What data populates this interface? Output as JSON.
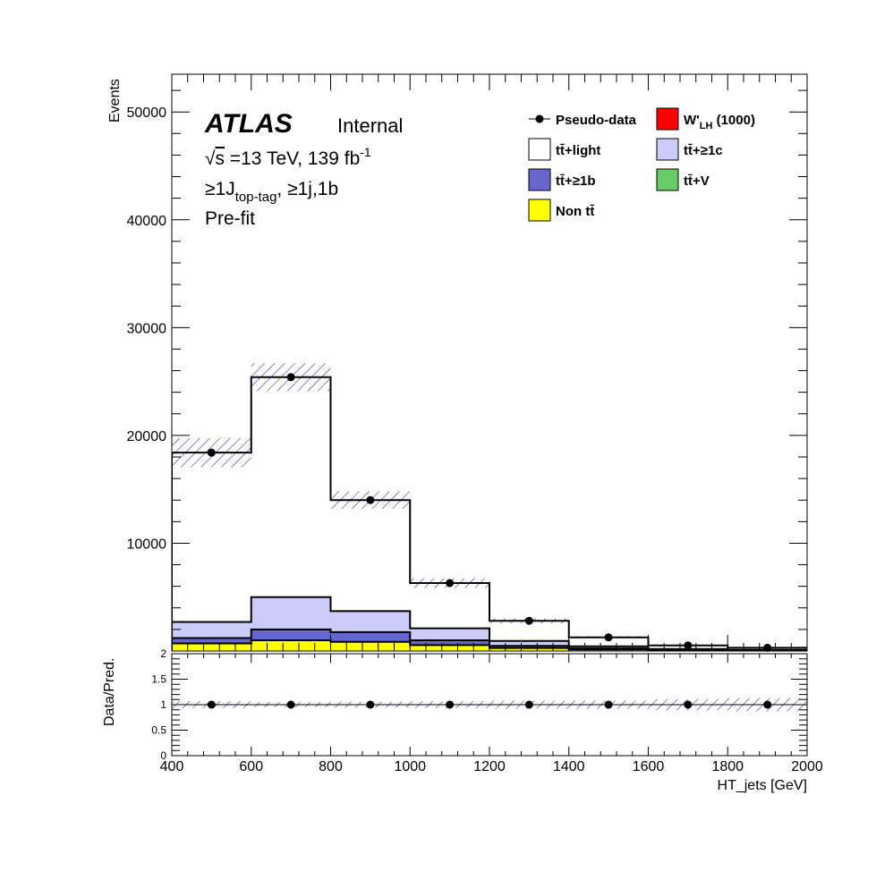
{
  "chart_data": {
    "type": "bar",
    "subtype": "stacked-histogram-with-ratio",
    "experiment": "ATLAS",
    "status": "Internal",
    "energy_label": "√s =13 TeV, 139 fb",
    "energy_label_sqrt": "√",
    "energy_label_s": "s",
    "energy_label_rest": " =13 TeV, 139 fb",
    "lumi_exponent": "-1",
    "region_label_pre": "≥1J",
    "region_label_sub": "top-tag",
    "region_label_post": ", ≥1j,1b",
    "fit_label": "Pre-fit",
    "xlabel": "HT_jets [GeV]",
    "ylabel": "Events",
    "ratio_ylabel": "Data/Pred.",
    "xlim": [
      400,
      2000
    ],
    "ylim": [
      0,
      53500
    ],
    "ratio_ylim": [
      0,
      2
    ],
    "x_ticks": [
      "400",
      "600",
      "800",
      "1000",
      "1200",
      "1400",
      "1600",
      "1800",
      "2000"
    ],
    "y_ticks": [
      "10000",
      "20000",
      "30000",
      "40000",
      "50000"
    ],
    "ratio_ticks": [
      "0",
      "0.5",
      "1",
      "1.5",
      "2"
    ],
    "bin_edges": [
      400,
      600,
      800,
      1000,
      1200,
      1400,
      1600,
      1800,
      2000
    ],
    "stack": [
      {
        "name": "Non tt̄",
        "color": "#ffff00",
        "values": [
          700,
          1000,
          850,
          550,
          280,
          140,
          70,
          40
        ]
      },
      {
        "name": "tt̄+≥1b",
        "color": "#6666cc",
        "values": [
          500,
          1000,
          900,
          450,
          200,
          100,
          40,
          20
        ]
      },
      {
        "name": "tt̄+≥1c",
        "color": "#ccccfa",
        "values": [
          1500,
          3000,
          1950,
          1100,
          450,
          200,
          80,
          40
        ]
      },
      {
        "name": "tt̄+light",
        "color": "#ffffff",
        "values": [
          15700,
          20400,
          10300,
          4200,
          1870,
          830,
          330,
          200
        ]
      },
      {
        "name": "tt̄+V",
        "color": "#66cc66",
        "values": [
          0,
          0,
          0,
          0,
          0,
          0,
          0,
          0
        ]
      }
    ],
    "signal": {
      "name": "W'",
      "name_sub": "LH",
      "name_suffix": " (1000)",
      "color": "#ff0000"
    },
    "total_prediction": [
      18400,
      25400,
      14000,
      6300,
      2800,
      1270,
      520,
      300
    ],
    "uncertainty_band": [
      1350,
      1300,
      800,
      450,
      220,
      100,
      60,
      40
    ],
    "pseudo_data": {
      "name": "Pseudo-data",
      "x": [
        500,
        700,
        900,
        1100,
        1300,
        1500,
        1700,
        1900
      ],
      "y": [
        18400,
        25400,
        14000,
        6300,
        2800,
        1270,
        520,
        300
      ]
    },
    "ratio": {
      "values": [
        1,
        1,
        1,
        1,
        1,
        1,
        1,
        1
      ],
      "band": [
        0.07,
        0.05,
        0.06,
        0.07,
        0.08,
        0.08,
        0.11,
        0.13
      ]
    },
    "legend": [
      {
        "label": "Pseudo-data",
        "marker": "point"
      },
      {
        "label": "W'",
        "sub": "LH",
        "suffix": " (1000)",
        "color": "#ff0000"
      },
      {
        "label": "tt̄+light",
        "color": "#ffffff"
      },
      {
        "label": "tt̄+≥1c",
        "color": "#ccccfa"
      },
      {
        "label": "tt̄+≥1b",
        "color": "#6666cc"
      },
      {
        "label": "tt̄+V",
        "color": "#66cc66"
      },
      {
        "label": "Non tt̄",
        "color": "#ffff00"
      }
    ],
    "band_color": "#3333aa"
  }
}
